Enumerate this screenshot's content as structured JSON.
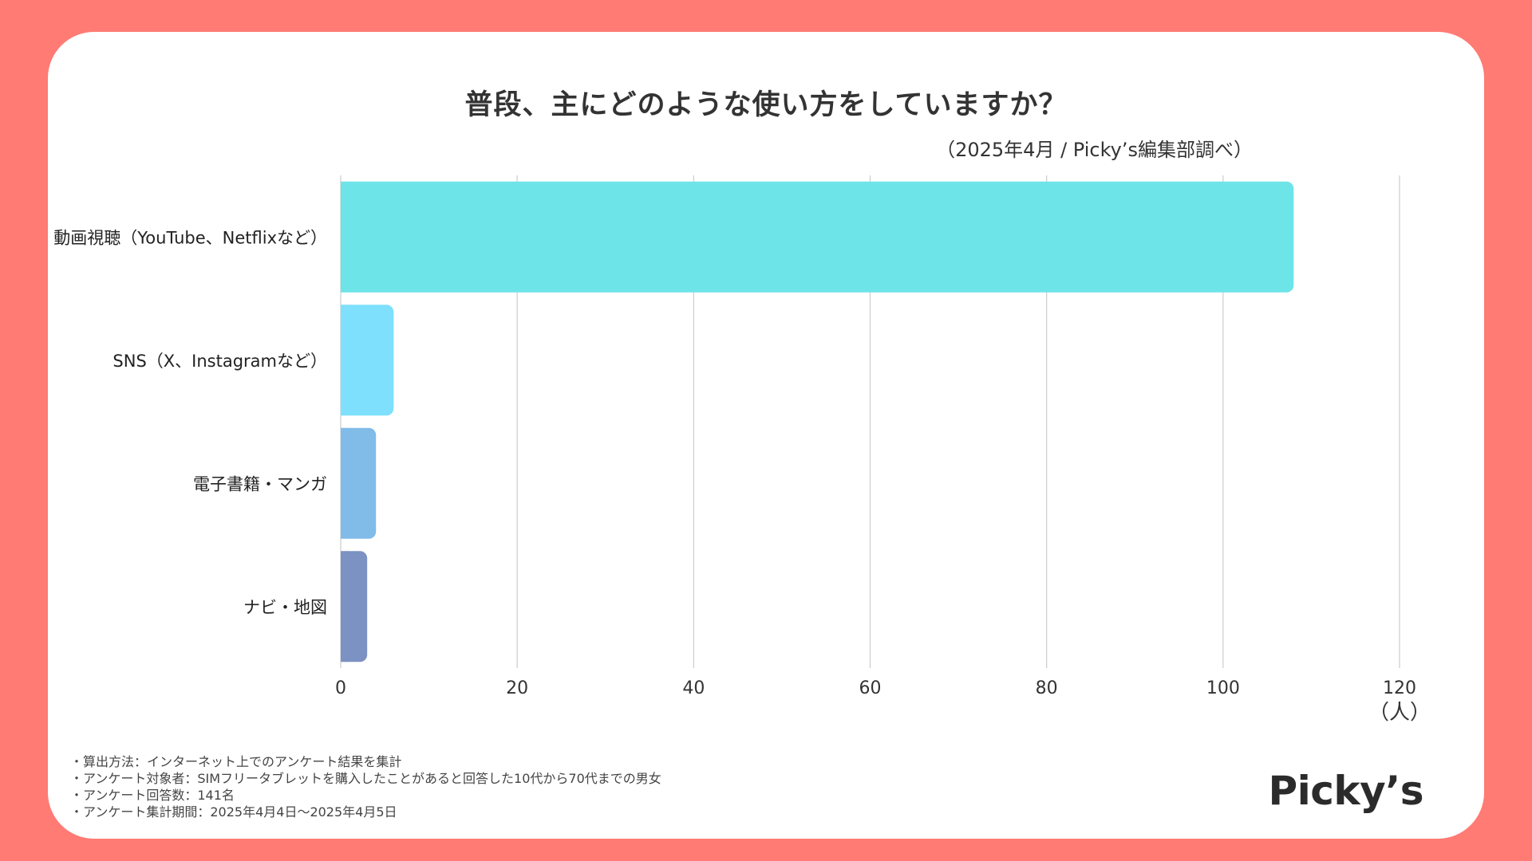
{
  "title": "普段、主にどのような使い方をしていますか？",
  "source": "（2025年4月 / Picky’s編集部調べ）",
  "chart_data": {
    "type": "bar",
    "orientation": "horizontal",
    "categories": [
      "動画視聴（YouTube、Netflixなど）",
      "SNS（X、Instagramなど）",
      "電子書籍・マンガ",
      "ナビ・地図"
    ],
    "values": [
      108,
      6,
      4,
      3
    ],
    "colors": [
      "#6de4e8",
      "#7ee0fc",
      "#81bbe8",
      "#7b92c2"
    ],
    "xlim": [
      0,
      120
    ],
    "xticks": [
      0,
      20,
      40,
      60,
      80,
      100,
      120
    ],
    "xlabel": "（人）",
    "grid": true
  },
  "notes": [
    "・算出方法：インターネット上でのアンケート結果を集計",
    "・アンケート対象者：SIMフリータブレットを購入したことがあると回答した10代から70代までの男女",
    "・アンケート回答数：141名",
    "・アンケート集計期間：2025年4月4日〜2025年4月5日"
  ],
  "logo": "Picky’s",
  "colors": {
    "background": "#ff7b74",
    "card": "#ffffff",
    "text": "#333333",
    "grid": "#cccccc"
  }
}
